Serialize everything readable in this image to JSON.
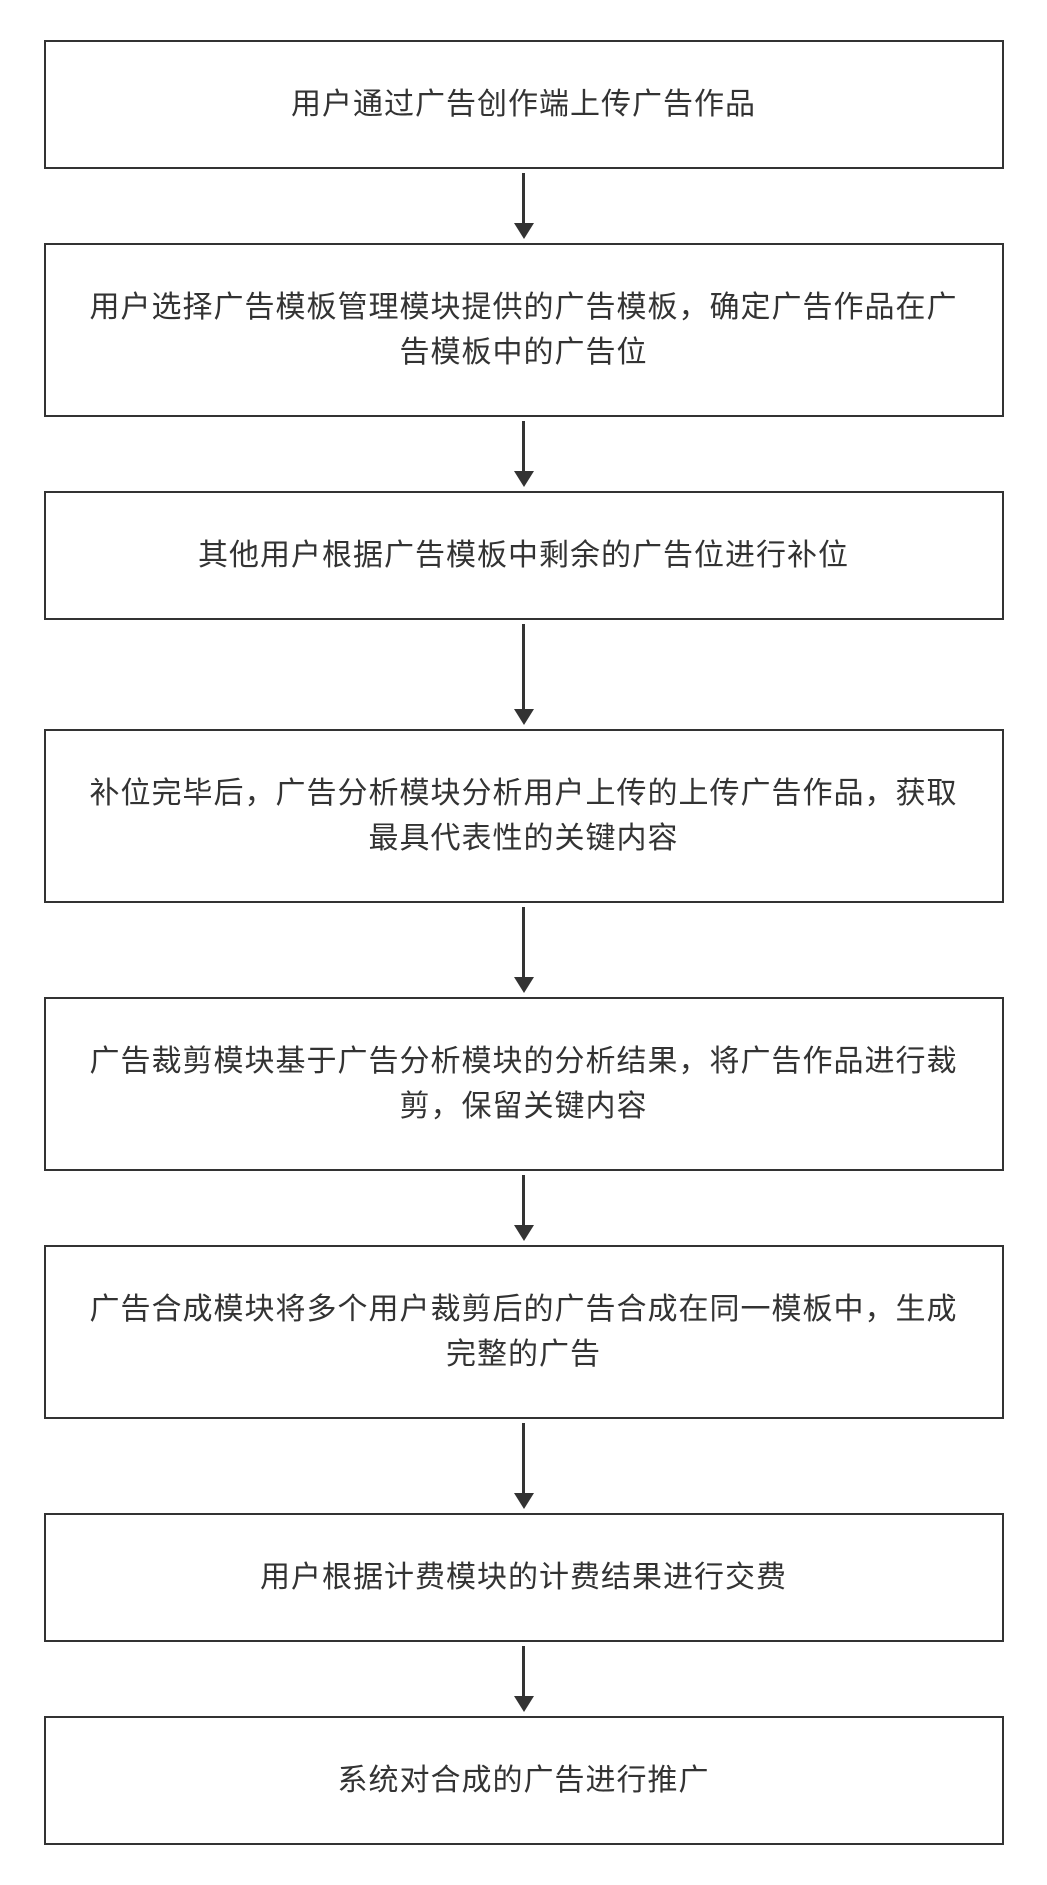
{
  "flowchart": {
    "type": "flowchart",
    "direction": "vertical",
    "box_border_color": "#333333",
    "box_border_width": 2,
    "box_background_color": "#ffffff",
    "text_color": "#333333",
    "font_size": 30,
    "font_family": "SimSun",
    "arrow_color": "#333333",
    "arrow_line_width": 3,
    "box_width_ratio": 1.0,
    "steps": [
      {
        "id": "step-1",
        "text": "用户通过广告创作端上传广告作品",
        "arrow_height": 50
      },
      {
        "id": "step-2",
        "text": "用户选择广告模板管理模块提供的广告模板，确定广告作品在广告模板中的广告位",
        "arrow_height": 50
      },
      {
        "id": "step-3",
        "text": "其他用户根据广告模板中剩余的广告位进行补位",
        "arrow_height": 85
      },
      {
        "id": "step-4",
        "text": "补位完毕后，广告分析模块分析用户上传的上传广告作品，获取最具代表性的关键内容",
        "arrow_height": 70
      },
      {
        "id": "step-5",
        "text": "广告裁剪模块基于广告分析模块的分析结果，将广告作品进行裁剪，保留关键内容",
        "arrow_height": 50
      },
      {
        "id": "step-6",
        "text": "广告合成模块将多个用户裁剪后的广告合成在同一模板中，生成完整的广告",
        "arrow_height": 70
      },
      {
        "id": "step-7",
        "text": "用户根据计费模块的计费结果进行交费",
        "arrow_height": 50
      },
      {
        "id": "step-8",
        "text": "系统对合成的广告进行推广",
        "arrow_height": null
      }
    ]
  }
}
